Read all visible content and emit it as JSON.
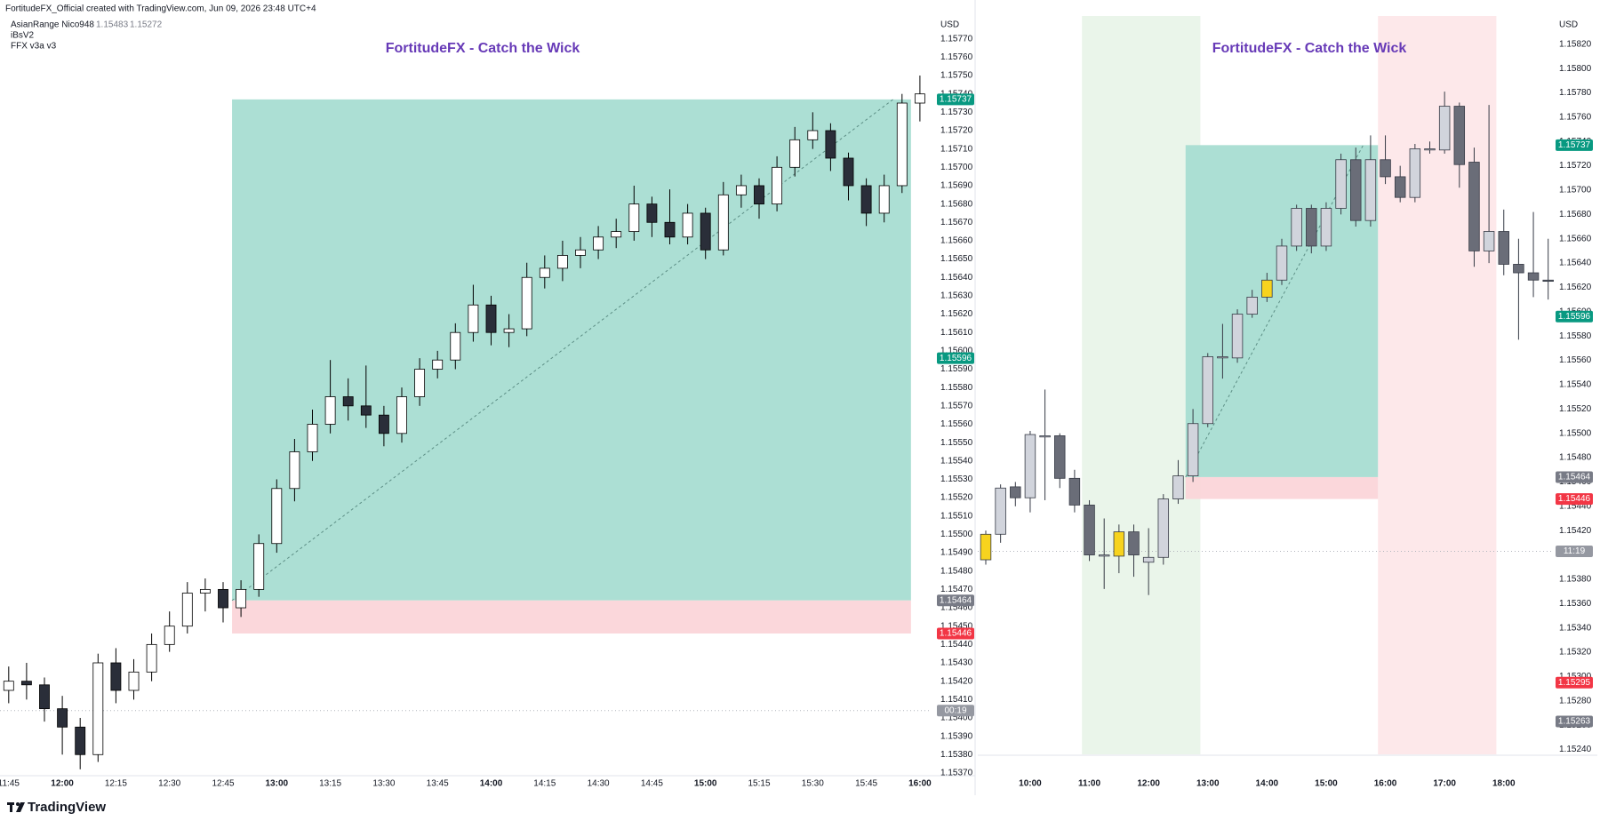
{
  "header": {
    "credit": "FortitudeFX_Official created with TradingView.com, Jun 09, 2026 23:48 UTC+4",
    "indicators": [
      {
        "name": "AsianRange Nico948",
        "values": [
          1.15483,
          1.15272
        ]
      },
      {
        "name": "iBsV2"
      },
      {
        "name": "FFX v3a v3"
      }
    ]
  },
  "footer": {
    "brand": "TradingView"
  },
  "chart_data": [
    {
      "type": "candlestick",
      "title": "FortitudeFX - Catch the Wick",
      "unit": "USD",
      "x": [
        "11:45",
        "11:50",
        "11:55",
        "12:00",
        "12:05",
        "12:10",
        "12:15",
        "12:20",
        "12:25",
        "12:30",
        "12:35",
        "12:40",
        "12:45",
        "12:50",
        "12:55",
        "13:00",
        "13:05",
        "13:10",
        "13:15",
        "13:20",
        "13:25",
        "13:30",
        "13:35",
        "13:40",
        "13:45",
        "13:50",
        "13:55",
        "14:00",
        "14:05",
        "14:10",
        "14:15",
        "14:20",
        "14:25",
        "14:30",
        "14:35",
        "14:40",
        "14:45",
        "14:50",
        "14:55",
        "15:00",
        "15:05",
        "15:10",
        "15:15",
        "15:20",
        "15:25",
        "15:30",
        "15:35",
        "15:40",
        "15:45",
        "15:50",
        "15:55",
        "16:00"
      ],
      "open": [
        1.15415,
        1.1542,
        1.15418,
        1.15405,
        1.15395,
        1.1538,
        1.1543,
        1.15415,
        1.15425,
        1.1544,
        1.1545,
        1.15468,
        1.1547,
        1.1546,
        1.1547,
        1.15495,
        1.15525,
        1.15545,
        1.1556,
        1.15575,
        1.1557,
        1.15565,
        1.15555,
        1.15575,
        1.1559,
        1.15595,
        1.1561,
        1.15625,
        1.1561,
        1.15612,
        1.1564,
        1.15645,
        1.15652,
        1.15655,
        1.15662,
        1.15665,
        1.1568,
        1.1567,
        1.15662,
        1.15675,
        1.15655,
        1.15685,
        1.1569,
        1.1568,
        1.157,
        1.15715,
        1.1572,
        1.15705,
        1.1569,
        1.15675,
        1.1569,
        1.15735
      ],
      "high": [
        1.15428,
        1.1543,
        1.15422,
        1.15412,
        1.154,
        1.15435,
        1.15438,
        1.15432,
        1.15446,
        1.15458,
        1.15474,
        1.15476,
        1.15474,
        1.15475,
        1.155,
        1.1553,
        1.15552,
        1.15568,
        1.15595,
        1.15585,
        1.15592,
        1.1557,
        1.1558,
        1.15596,
        1.156,
        1.15615,
        1.15636,
        1.1563,
        1.1562,
        1.15648,
        1.15652,
        1.1566,
        1.15662,
        1.15668,
        1.15672,
        1.1569,
        1.15684,
        1.15688,
        1.1568,
        1.15678,
        1.15692,
        1.15696,
        1.15694,
        1.15706,
        1.15722,
        1.1573,
        1.15724,
        1.15708,
        1.15694,
        1.15696,
        1.1574,
        1.1575
      ],
      "low": [
        1.15408,
        1.1541,
        1.15398,
        1.1538,
        1.15372,
        1.15376,
        1.15408,
        1.1541,
        1.1542,
        1.15436,
        1.15446,
        1.15458,
        1.15452,
        1.15455,
        1.15466,
        1.1549,
        1.15518,
        1.1554,
        1.15555,
        1.15562,
        1.15558,
        1.15548,
        1.1555,
        1.1557,
        1.15585,
        1.1559,
        1.15605,
        1.15603,
        1.15602,
        1.15608,
        1.15634,
        1.15638,
        1.15645,
        1.1565,
        1.15656,
        1.1566,
        1.15662,
        1.15658,
        1.15658,
        1.1565,
        1.15652,
        1.15678,
        1.15672,
        1.15676,
        1.15695,
        1.1571,
        1.15698,
        1.15682,
        1.15668,
        1.1567,
        1.15686,
        1.15725
      ],
      "close": [
        1.1542,
        1.15418,
        1.15405,
        1.15395,
        1.1538,
        1.1543,
        1.15415,
        1.15425,
        1.1544,
        1.1545,
        1.15468,
        1.1547,
        1.1546,
        1.1547,
        1.15495,
        1.15525,
        1.15545,
        1.1556,
        1.15575,
        1.1557,
        1.15565,
        1.15555,
        1.15575,
        1.1559,
        1.15595,
        1.1561,
        1.15625,
        1.1561,
        1.15612,
        1.1564,
        1.15645,
        1.15652,
        1.15655,
        1.15662,
        1.15665,
        1.1568,
        1.1567,
        1.15662,
        1.15675,
        1.15655,
        1.15685,
        1.1569,
        1.1568,
        1.157,
        1.15715,
        1.1572,
        1.15705,
        1.1569,
        1.15675,
        1.1569,
        1.15735,
        1.1574
      ],
      "up_color": "#ffffff",
      "down_color": "#2a2e39",
      "border_color": "#000000",
      "ylim": [
        1.15369,
        1.15781
      ],
      "yticks": [
        {
          "value": 1.1537,
          "label": "1.15370"
        },
        {
          "value": 1.1538,
          "label": "1.15380"
        },
        {
          "value": 1.1539,
          "label": "1.15390"
        },
        {
          "value": 1.154,
          "label": "1.15400"
        },
        {
          "value": 1.1541,
          "label": "1.15410"
        },
        {
          "value": 1.1542,
          "label": "1.15420"
        },
        {
          "value": 1.1543,
          "label": "1.15430"
        },
        {
          "value": 1.1544,
          "label": "1.15440"
        },
        {
          "value": 1.1545,
          "label": "1.15450"
        },
        {
          "value": 1.1546,
          "label": "1.15460"
        },
        {
          "value": 1.1547,
          "label": "1.15470"
        },
        {
          "value": 1.1548,
          "label": "1.15480"
        },
        {
          "value": 1.1549,
          "label": "1.15490"
        },
        {
          "value": 1.155,
          "label": "1.15500"
        },
        {
          "value": 1.1551,
          "label": "1.15510"
        },
        {
          "value": 1.1552,
          "label": "1.15520"
        },
        {
          "value": 1.1553,
          "label": "1.15530"
        },
        {
          "value": 1.1554,
          "label": "1.15540"
        },
        {
          "value": 1.1555,
          "label": "1.15550"
        },
        {
          "value": 1.1556,
          "label": "1.15560"
        },
        {
          "value": 1.1557,
          "label": "1.15570"
        },
        {
          "value": 1.1558,
          "label": "1.15580"
        },
        {
          "value": 1.1559,
          "label": "1.15590"
        },
        {
          "value": 1.156,
          "label": "1.15600"
        },
        {
          "value": 1.1561,
          "label": "1.15610"
        },
        {
          "value": 1.1562,
          "label": "1.15620"
        },
        {
          "value": 1.1563,
          "label": "1.15630"
        },
        {
          "value": 1.1564,
          "label": "1.15640"
        },
        {
          "value": 1.1565,
          "label": "1.15650"
        },
        {
          "value": 1.1566,
          "label": "1.15660"
        },
        {
          "value": 1.1567,
          "label": "1.15670"
        },
        {
          "value": 1.1568,
          "label": "1.15680"
        },
        {
          "value": 1.1569,
          "label": "1.15690"
        },
        {
          "value": 1.157,
          "label": "1.15700"
        },
        {
          "value": 1.1571,
          "label": "1.15710"
        },
        {
          "value": 1.1572,
          "label": "1.15720"
        },
        {
          "value": 1.1573,
          "label": "1.15730"
        },
        {
          "value": 1.1574,
          "label": "1.15740"
        },
        {
          "value": 1.1575,
          "label": "1.15750"
        },
        {
          "value": 1.1576,
          "label": "1.15760"
        },
        {
          "value": 1.1577,
          "label": "1.15770"
        }
      ],
      "xticks": [
        "11:45",
        "12:00",
        "12:15",
        "12:30",
        "12:45",
        "13:00",
        "13:15",
        "13:30",
        "13:45",
        "14:00",
        "14:15",
        "14:30",
        "14:45",
        "15:00",
        "15:15",
        "15:30",
        "15:45",
        "16:00"
      ],
      "zones": [
        {
          "from": "12:50",
          "to": "15:55",
          "top": 1.15737,
          "bottom": 1.15464,
          "color": "#a8ddd2"
        },
        {
          "from": "12:50",
          "to": "15:55",
          "top": 1.15464,
          "bottom": 1.15446,
          "color": "#fbd5d9"
        }
      ],
      "price_labels": [
        {
          "value": 1.15737,
          "label": "1.15737",
          "color": "#089981"
        },
        {
          "value": 1.15596,
          "label": "1.15596",
          "color": "#089981"
        },
        {
          "value": 1.15464,
          "label": "1.15464",
          "color": "#787b86"
        },
        {
          "value": 1.15446,
          "label": "1.15446",
          "color": "#f23645"
        },
        {
          "value": 1.15404,
          "label": "00:19",
          "color": "#9598a1",
          "line": "dotted"
        }
      ]
    },
    {
      "type": "candlestick",
      "title": "FortitudeFX - Catch the Wick",
      "unit": "USD",
      "x": [
        "9:15",
        "9:30",
        "9:45",
        "10:00",
        "10:15",
        "10:30",
        "10:45",
        "11:00",
        "11:15",
        "11:30",
        "11:45",
        "12:00",
        "12:15",
        "12:30",
        "12:45",
        "13:00",
        "13:15",
        "13:30",
        "13:45",
        "14:00",
        "14:15",
        "14:30",
        "14:45",
        "15:00",
        "15:15",
        "15:30",
        "15:45",
        "16:00",
        "16:15",
        "16:30",
        "16:45",
        "17:00",
        "17:15",
        "17:30",
        "17:45",
        "18:00",
        "18:15",
        "18:30",
        "18:45"
      ],
      "open": [
        1.15396,
        1.15417,
        1.15456,
        1.15447,
        1.15497,
        1.15498,
        1.15463,
        1.15441,
        1.154,
        1.15399,
        1.15419,
        1.15394,
        1.15398,
        1.15446,
        1.15465,
        1.15508,
        1.15563,
        1.15562,
        1.15598,
        1.15612,
        1.15626,
        1.15654,
        1.15685,
        1.15654,
        1.15685,
        1.15725,
        1.15675,
        1.15725,
        1.15711,
        1.15694,
        1.15734,
        1.15733,
        1.15769,
        1.15723,
        1.1565,
        1.15666,
        1.15639,
        1.15632,
        1.15626
      ],
      "high": [
        1.1542,
        1.15458,
        1.1546,
        1.15502,
        1.15536,
        1.155,
        1.1547,
        1.15445,
        1.1543,
        1.15425,
        1.15425,
        1.15422,
        1.1545,
        1.15478,
        1.1552,
        1.15566,
        1.1559,
        1.15602,
        1.15618,
        1.15632,
        1.1566,
        1.15688,
        1.15688,
        1.1569,
        1.1573,
        1.15735,
        1.15745,
        1.15745,
        1.1572,
        1.15738,
        1.1574,
        1.15781,
        1.15772,
        1.15735,
        1.1577,
        1.15684,
        1.1566,
        1.15682,
        1.1566
      ],
      "low": [
        1.15392,
        1.1541,
        1.1544,
        1.15435,
        1.15445,
        1.15455,
        1.15435,
        1.15395,
        1.15372,
        1.15385,
        1.15382,
        1.15367,
        1.15392,
        1.15442,
        1.1546,
        1.15505,
        1.15545,
        1.15558,
        1.15595,
        1.15608,
        1.15622,
        1.1565,
        1.15648,
        1.1565,
        1.1568,
        1.1567,
        1.1567,
        1.15705,
        1.1569,
        1.1569,
        1.1573,
        1.1573,
        1.15702,
        1.15637,
        1.1564,
        1.1563,
        1.15577,
        1.15612,
        1.1561
      ],
      "close": [
        1.15417,
        1.15455,
        1.15447,
        1.15499,
        1.15498,
        1.15463,
        1.15441,
        1.154,
        1.15399,
        1.15419,
        1.154,
        1.15398,
        1.15446,
        1.15465,
        1.15508,
        1.15563,
        1.15562,
        1.15598,
        1.15612,
        1.15626,
        1.15654,
        1.15685,
        1.15654,
        1.15685,
        1.15725,
        1.15675,
        1.15725,
        1.15711,
        1.15694,
        1.15734,
        1.15733,
        1.15769,
        1.15721,
        1.1565,
        1.15666,
        1.15639,
        1.15632,
        1.15626,
        1.15625
      ],
      "candle_colors": [
        "#f7d31e",
        "#d1d4dc",
        "#6a6d78",
        "#d1d4dc",
        "#d1d4dc",
        "#6a6d78",
        "#6a6d78",
        "#6a6d78",
        "#d1d4dc",
        "#f7d31e",
        "#6a6d78",
        "#d1d4dc",
        "#d1d4dc",
        "#d1d4dc",
        "#d1d4dc",
        "#d1d4dc",
        "#d1d4dc",
        "#d1d4dc",
        "#d1d4dc",
        "#f7d31e",
        "#d1d4dc",
        "#d1d4dc",
        "#6a6d78",
        "#d1d4dc",
        "#d1d4dc",
        "#6a6d78",
        "#d1d4dc",
        "#6a6d78",
        "#6a6d78",
        "#d1d4dc",
        "#d1d4dc",
        "#d1d4dc",
        "#6a6d78",
        "#6a6d78",
        "#d1d4dc",
        "#6a6d78",
        "#6a6d78",
        "#6a6d78",
        "#6a6d78"
      ],
      "border_color": "#363a45",
      "ylim": [
        1.15236,
        1.15841
      ],
      "yticks": [
        {
          "value": 1.1524,
          "label": "1.15240"
        },
        {
          "value": 1.1526,
          "label": "1.15260"
        },
        {
          "value": 1.1528,
          "label": "1.15280"
        },
        {
          "value": 1.153,
          "label": "1.15300"
        },
        {
          "value": 1.1532,
          "label": "1.15320"
        },
        {
          "value": 1.1534,
          "label": "1.15340"
        },
        {
          "value": 1.1536,
          "label": "1.15360"
        },
        {
          "value": 1.1538,
          "label": "1.15380"
        },
        {
          "value": 1.154,
          "label": "1.15400"
        },
        {
          "value": 1.1542,
          "label": "1.15420"
        },
        {
          "value": 1.1544,
          "label": "1.15440"
        },
        {
          "value": 1.1546,
          "label": "1.15460"
        },
        {
          "value": 1.1548,
          "label": "1.15480"
        },
        {
          "value": 1.155,
          "label": "1.15500"
        },
        {
          "value": 1.1552,
          "label": "1.15520"
        },
        {
          "value": 1.1554,
          "label": "1.15540"
        },
        {
          "value": 1.1556,
          "label": "1.15560"
        },
        {
          "value": 1.1558,
          "label": "1.15580"
        },
        {
          "value": 1.156,
          "label": "1.15600"
        },
        {
          "value": 1.1562,
          "label": "1.15620"
        },
        {
          "value": 1.1564,
          "label": "1.15640"
        },
        {
          "value": 1.1566,
          "label": "1.15660"
        },
        {
          "value": 1.1568,
          "label": "1.15680"
        },
        {
          "value": 1.157,
          "label": "1.15700"
        },
        {
          "value": 1.1572,
          "label": "1.15720"
        },
        {
          "value": 1.1574,
          "label": "1.15740"
        },
        {
          "value": 1.1576,
          "label": "1.15760"
        },
        {
          "value": 1.1578,
          "label": "1.15780"
        },
        {
          "value": 1.158,
          "label": "1.15800"
        },
        {
          "value": 1.1582,
          "label": "1.15820"
        }
      ],
      "xticks": [
        "10:00",
        "11:00",
        "12:00",
        "13:00",
        "14:00",
        "15:00",
        "16:00",
        "17:00",
        "18:00"
      ],
      "sessions": [
        {
          "from": "11:00",
          "to": "12:45",
          "color": "#eaf5ea"
        },
        {
          "from": "16:00",
          "to": "17:45",
          "color": "#fde8ea"
        }
      ],
      "zones": [
        {
          "from": "12:45",
          "to": "15:45",
          "top": 1.15737,
          "bottom": 1.15464,
          "color": "#a8ddd2"
        },
        {
          "from": "12:45",
          "to": "15:45",
          "top": 1.15464,
          "bottom": 1.15446,
          "color": "#fbd5d9"
        }
      ],
      "price_labels": [
        {
          "value": 1.15737,
          "label": "1.15737",
          "color": "#089981"
        },
        {
          "value": 1.15596,
          "label": "1.15596",
          "color": "#089981"
        },
        {
          "value": 1.15464,
          "label": "1.15464",
          "color": "#787b86"
        },
        {
          "value": 1.15446,
          "label": "1.15446",
          "color": "#f23645"
        },
        {
          "value": 1.15403,
          "label": "11:19",
          "color": "#9598a1",
          "line": "dotted"
        },
        {
          "value": 1.15295,
          "label": "1.15295",
          "color": "#f23645"
        },
        {
          "value": 1.15263,
          "label": "1.15263",
          "color": "#787b86"
        }
      ]
    }
  ]
}
